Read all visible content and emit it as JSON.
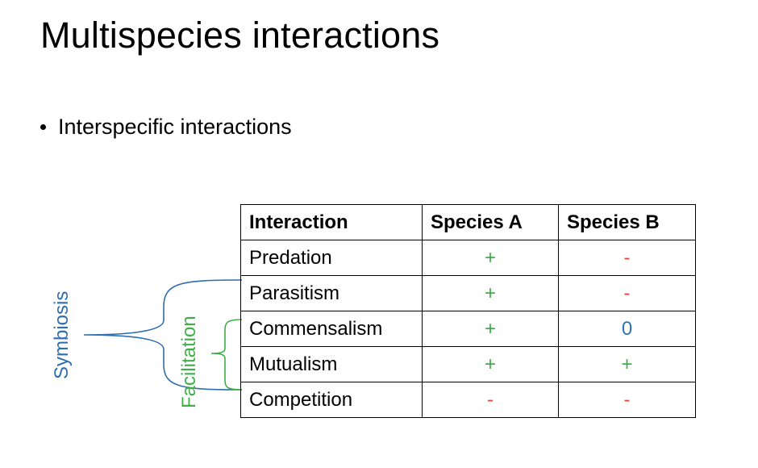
{
  "slide": {
    "title": "Multispecies interactions",
    "bullet": "Interspecific interactions"
  },
  "table": {
    "headers": [
      "Interaction",
      "Species A",
      "Species B"
    ],
    "rows": [
      {
        "interaction": "Predation",
        "species_a": "+",
        "species_b": "-",
        "a_color": "green",
        "b_color": "red"
      },
      {
        "interaction": "Parasitism",
        "species_a": "+",
        "species_b": "-",
        "a_color": "green",
        "b_color": "red"
      },
      {
        "interaction": "Commensalism",
        "species_a": "+",
        "species_b": "0",
        "a_color": "green",
        "b_color": "blue"
      },
      {
        "interaction": "Mutualism",
        "species_a": "+",
        "species_b": "+",
        "a_color": "green",
        "b_color": "green"
      },
      {
        "interaction": "Competition",
        "species_a": "-",
        "species_b": "-",
        "a_color": "red",
        "b_color": "red"
      }
    ]
  },
  "groups": {
    "symbiosis_label": "Symbiosis",
    "facilitation_label": "Facilitation"
  },
  "colors": {
    "green": "#3fae49",
    "red": "#e8433b",
    "blue": "#2e75b6",
    "symbiosis": "#2e6db0"
  }
}
